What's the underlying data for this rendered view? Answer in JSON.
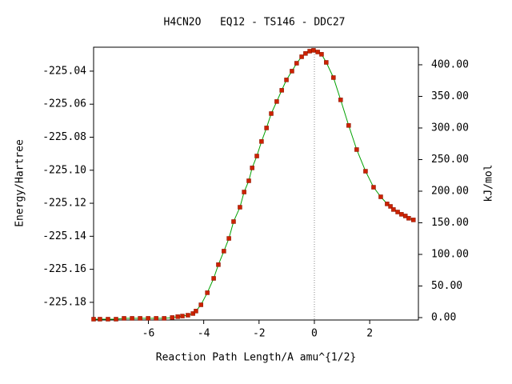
{
  "chart_data": {
    "type": "line",
    "title": "H4CN2O   EQ12 - TS146 - DDC27",
    "x_label": "Reaction Path Length/A amu^{1/2}",
    "y_label": "Energy/Hartree",
    "y2_label": "kJ/mol",
    "x": [
      -7.98,
      -7.75,
      -7.46,
      -7.17,
      -6.88,
      -6.59,
      -6.3,
      -6.01,
      -5.72,
      -5.43,
      -5.14,
      -4.94,
      -4.77,
      -4.57,
      -4.39,
      -4.28,
      -4.1,
      -3.87,
      -3.64,
      -3.47,
      -3.27,
      -3.09,
      -2.92,
      -2.69,
      -2.54,
      -2.37,
      -2.25,
      -2.08,
      -1.91,
      -1.73,
      -1.56,
      -1.36,
      -1.18,
      -1.01,
      -0.81,
      -0.64,
      -0.46,
      -0.32,
      -0.17,
      -0.03,
      0.12,
      0.26,
      0.43,
      0.69,
      0.95,
      1.24,
      1.53,
      1.85,
      2.14,
      2.4,
      2.63,
      2.75,
      2.86,
      3.01,
      3.15,
      3.29,
      3.41,
      3.58
    ],
    "values": [
      -225.1902,
      -225.1902,
      -225.1902,
      -225.1902,
      -225.1897,
      -225.1897,
      -225.1897,
      -225.1897,
      -225.1897,
      -225.1897,
      -225.1892,
      -225.1887,
      -225.1883,
      -225.1878,
      -225.1868,
      -225.1853,
      -225.1815,
      -225.1742,
      -225.1655,
      -225.1572,
      -225.149,
      -225.1413,
      -225.1311,
      -225.1224,
      -225.1132,
      -225.1064,
      -225.0986,
      -225.0914,
      -225.0826,
      -225.0744,
      -225.0657,
      -225.0584,
      -225.0516,
      -225.0453,
      -225.04,
      -225.0352,
      -225.0313,
      -225.0293,
      -225.0279,
      -225.0274,
      -225.0284,
      -225.0298,
      -225.0347,
      -225.0439,
      -225.0574,
      -225.0729,
      -225.0875,
      -225.1006,
      -225.1103,
      -225.1161,
      -225.1204,
      -225.1219,
      -225.1238,
      -225.1253,
      -225.1267,
      -225.1277,
      -225.1291,
      -225.1301
    ],
    "color": "#00a000",
    "marker_color": "#cc2200",
    "xlim": [
      -7.98,
      3.76
    ],
    "ylim": [
      -225.1907,
      -225.0255
    ],
    "y2lim": [
      -3.8,
      427.8
    ],
    "xticks": [
      -6,
      -4,
      -2,
      0,
      2
    ],
    "yticks": [
      -225.04,
      -225.06,
      -225.08,
      {
        "value": -225.1,
        "label": "-225.10"
      },
      -225.12,
      -225.14,
      -225.16,
      -225.18
    ],
    "y2ticks": [
      {
        "value": 0,
        "label": "0.00"
      },
      {
        "value": 50,
        "label": "50.00"
      },
      {
        "value": 100,
        "label": "100.00"
      },
      {
        "value": 150,
        "label": "150.00"
      },
      {
        "value": 200,
        "label": "200.00"
      },
      {
        "value": 250,
        "label": "250.00"
      },
      {
        "value": 300,
        "label": "300.00"
      },
      {
        "value": 350,
        "label": "350.00"
      },
      {
        "value": 400,
        "label": "400.00"
      }
    ],
    "vline_x": 0
  }
}
